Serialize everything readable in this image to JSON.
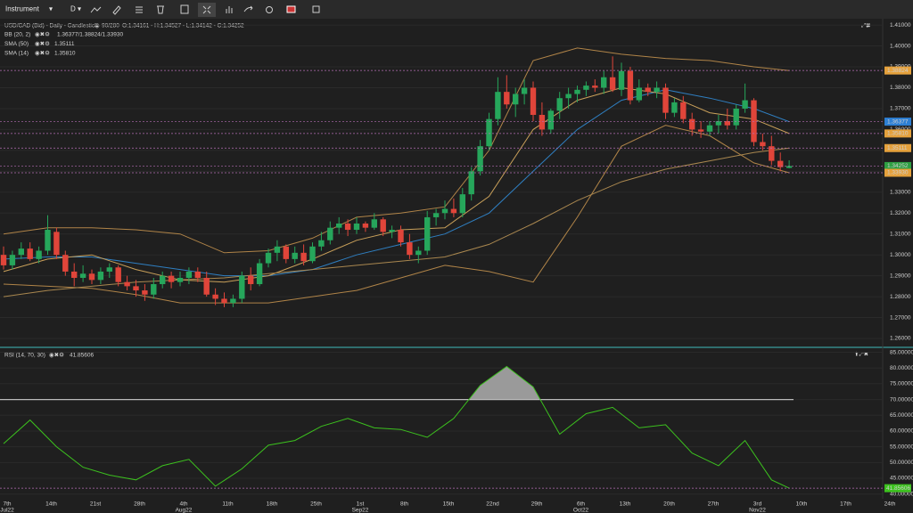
{
  "toolbar": {
    "instrument": "Instrument",
    "timeframe": "D"
  },
  "chart": {
    "title": "USD/CAD (Bid) - Daily - Candlestick",
    "bar_count": "90/280",
    "ohlc": "O:1.34161 - H:1.34527 - L:1.34142 - C:1.34252",
    "legend": [
      {
        "name": "BB (20, 2)",
        "value": "1.36377/1.38824/1.33930"
      },
      {
        "name": "SMA (50)",
        "value": "1.35111"
      },
      {
        "name": "SMA (14)",
        "value": "1.35810"
      }
    ],
    "up_color": "#26a65b",
    "down_color": "#e0453a",
    "ylim": [
      1.2566,
      1.4126
    ],
    "yticks": [
      {
        "value": 1.41,
        "label": "1.41000"
      },
      {
        "value": 1.4,
        "label": "1.40000"
      },
      {
        "value": 1.39,
        "label": "1.39000"
      },
      {
        "value": 1.38,
        "label": "1.38000"
      },
      {
        "value": 1.37,
        "label": "1.37000"
      },
      {
        "value": 1.36,
        "label": "1.36000"
      },
      {
        "value": 1.35,
        "label": "1.35000"
      },
      {
        "value": 1.34,
        "label": "1.34000"
      },
      {
        "value": 1.33,
        "label": "1.33000"
      },
      {
        "value": 1.32,
        "label": "1.32000"
      },
      {
        "value": 1.31,
        "label": "1.31000"
      },
      {
        "value": 1.3,
        "label": "1.30000"
      },
      {
        "value": 1.29,
        "label": "1.29000"
      },
      {
        "value": 1.28,
        "label": "1.28000"
      },
      {
        "value": 1.27,
        "label": "1.27000"
      },
      {
        "value": 1.26,
        "label": "1.26000"
      }
    ],
    "candles": [
      [
        1.3,
        1.304,
        1.293,
        1.295
      ],
      [
        1.295,
        1.302,
        1.293,
        1.3
      ],
      [
        1.3,
        1.306,
        1.298,
        1.303
      ],
      [
        1.303,
        1.306,
        1.297,
        1.298
      ],
      [
        1.298,
        1.304,
        1.296,
        1.302
      ],
      [
        1.302,
        1.319,
        1.3,
        1.312
      ],
      [
        1.311,
        1.313,
        1.298,
        1.3
      ],
      [
        1.3,
        1.302,
        1.29,
        1.292
      ],
      [
        1.292,
        1.296,
        1.285,
        1.289
      ],
      [
        1.289,
        1.295,
        1.287,
        1.291
      ],
      [
        1.291,
        1.293,
        1.286,
        1.288
      ],
      [
        1.288,
        1.294,
        1.286,
        1.292
      ],
      [
        1.292,
        1.296,
        1.289,
        1.294
      ],
      [
        1.294,
        1.295,
        1.285,
        1.287
      ],
      [
        1.287,
        1.29,
        1.283,
        1.285
      ],
      [
        1.285,
        1.288,
        1.28,
        1.283
      ],
      [
        1.283,
        1.286,
        1.278,
        1.281
      ],
      [
        1.281,
        1.289,
        1.279,
        1.286
      ],
      [
        1.286,
        1.292,
        1.284,
        1.29
      ],
      [
        1.29,
        1.292,
        1.284,
        1.287
      ],
      [
        1.287,
        1.292,
        1.285,
        1.289
      ],
      [
        1.289,
        1.294,
        1.286,
        1.292
      ],
      [
        1.292,
        1.294,
        1.287,
        1.289
      ],
      [
        1.289,
        1.292,
        1.28,
        1.281
      ],
      [
        1.281,
        1.284,
        1.276,
        1.279
      ],
      [
        1.279,
        1.282,
        1.275,
        1.277
      ],
      [
        1.277,
        1.281,
        1.275,
        1.279
      ],
      [
        1.279,
        1.292,
        1.277,
        1.29
      ],
      [
        1.29,
        1.294,
        1.283,
        1.286
      ],
      [
        1.286,
        1.298,
        1.285,
        1.296
      ],
      [
        1.296,
        1.303,
        1.294,
        1.301
      ],
      [
        1.301,
        1.307,
        1.297,
        1.304
      ],
      [
        1.304,
        1.305,
        1.296,
        1.298
      ],
      [
        1.298,
        1.304,
        1.296,
        1.301
      ],
      [
        1.301,
        1.305,
        1.295,
        1.297
      ],
      [
        1.297,
        1.306,
        1.296,
        1.304
      ],
      [
        1.304,
        1.311,
        1.302,
        1.307
      ],
      [
        1.307,
        1.316,
        1.305,
        1.313
      ],
      [
        1.313,
        1.318,
        1.31,
        1.315
      ],
      [
        1.315,
        1.317,
        1.309,
        1.312
      ],
      [
        1.312,
        1.318,
        1.31,
        1.315
      ],
      [
        1.315,
        1.316,
        1.311,
        1.313
      ],
      [
        1.313,
        1.32,
        1.312,
        1.317
      ],
      [
        1.317,
        1.318,
        1.309,
        1.311
      ],
      [
        1.311,
        1.314,
        1.308,
        1.312
      ],
      [
        1.312,
        1.314,
        1.304,
        1.306
      ],
      [
        1.306,
        1.31,
        1.298,
        1.3
      ],
      [
        1.3,
        1.304,
        1.296,
        1.302
      ],
      [
        1.302,
        1.321,
        1.3,
        1.318
      ],
      [
        1.318,
        1.322,
        1.314,
        1.32
      ],
      [
        1.32,
        1.326,
        1.317,
        1.322
      ],
      [
        1.322,
        1.327,
        1.318,
        1.32
      ],
      [
        1.32,
        1.332,
        1.318,
        1.329
      ],
      [
        1.329,
        1.342,
        1.326,
        1.34
      ],
      [
        1.34,
        1.355,
        1.338,
        1.352
      ],
      [
        1.352,
        1.368,
        1.35,
        1.365
      ],
      [
        1.365,
        1.385,
        1.362,
        1.378
      ],
      [
        1.378,
        1.386,
        1.37,
        1.372
      ],
      [
        1.372,
        1.38,
        1.366,
        1.377
      ],
      [
        1.377,
        1.384,
        1.372,
        1.38
      ],
      [
        1.38,
        1.383,
        1.364,
        1.367
      ],
      [
        1.367,
        1.373,
        1.357,
        1.36
      ],
      [
        1.36,
        1.37,
        1.358,
        1.369
      ],
      [
        1.369,
        1.378,
        1.365,
        1.375
      ],
      [
        1.375,
        1.38,
        1.37,
        1.377
      ],
      [
        1.377,
        1.381,
        1.373,
        1.379
      ],
      [
        1.379,
        1.383,
        1.376,
        1.381
      ],
      [
        1.381,
        1.384,
        1.378,
        1.38
      ],
      [
        1.38,
        1.388,
        1.377,
        1.385
      ],
      [
        1.385,
        1.395,
        1.378,
        1.379
      ],
      [
        1.379,
        1.392,
        1.376,
        1.388
      ],
      [
        1.388,
        1.39,
        1.372,
        1.374
      ],
      [
        1.374,
        1.384,
        1.373,
        1.38
      ],
      [
        1.38,
        1.382,
        1.376,
        1.378
      ],
      [
        1.378,
        1.383,
        1.375,
        1.38
      ],
      [
        1.38,
        1.382,
        1.365,
        1.368
      ],
      [
        1.368,
        1.375,
        1.366,
        1.373
      ],
      [
        1.373,
        1.376,
        1.363,
        1.365
      ],
      [
        1.365,
        1.368,
        1.357,
        1.36
      ],
      [
        1.36,
        1.364,
        1.356,
        1.359
      ],
      [
        1.359,
        1.364,
        1.357,
        1.362
      ],
      [
        1.362,
        1.367,
        1.358,
        1.364
      ],
      [
        1.364,
        1.37,
        1.36,
        1.362
      ],
      [
        1.362,
        1.372,
        1.36,
        1.37
      ],
      [
        1.37,
        1.382,
        1.368,
        1.374
      ],
      [
        1.374,
        1.375,
        1.352,
        1.354
      ],
      [
        1.354,
        1.358,
        1.35,
        1.352
      ],
      [
        1.352,
        1.357,
        1.343,
        1.345
      ],
      [
        1.345,
        1.349,
        1.34,
        1.342
      ],
      [
        1.34161,
        1.34527,
        1.34142,
        1.34252
      ]
    ],
    "lines": [
      {
        "color": "#b08448",
        "x": [
          0,
          5,
          10,
          15,
          20,
          25,
          30,
          35,
          40,
          45,
          50,
          55,
          60,
          65,
          70,
          75,
          80,
          85,
          89
        ],
        "values": [
          1.31,
          1.313,
          1.313,
          1.312,
          1.31,
          1.301,
          1.302,
          1.308,
          1.318,
          1.32,
          1.323,
          1.35,
          1.393,
          1.399,
          1.396,
          1.394,
          1.393,
          1.39,
          1.38824
        ]
      },
      {
        "color": "#2f7fc1",
        "x": [
          0,
          5,
          10,
          15,
          20,
          25,
          30,
          35,
          40,
          45,
          50,
          55,
          60,
          65,
          70,
          75,
          80,
          85,
          89
        ],
        "values": [
          1.298,
          1.299,
          1.299,
          1.296,
          1.293,
          1.29,
          1.29,
          1.293,
          1.3,
          1.305,
          1.31,
          1.32,
          1.34,
          1.36,
          1.374,
          1.379,
          1.375,
          1.37,
          1.36377
        ]
      },
      {
        "color": "#b08448",
        "x": [
          0,
          5,
          10,
          15,
          20,
          25,
          30,
          35,
          40,
          45,
          50,
          55,
          60,
          65,
          70,
          75,
          80,
          85,
          89
        ],
        "values": [
          1.286,
          1.285,
          1.284,
          1.281,
          1.277,
          1.277,
          1.277,
          1.28,
          1.283,
          1.289,
          1.295,
          1.292,
          1.287,
          1.318,
          1.352,
          1.362,
          1.357,
          1.344,
          1.3393
        ]
      },
      {
        "color": "#c9a05a",
        "x": [
          0,
          5,
          10,
          15,
          20,
          25,
          30,
          35,
          40,
          45,
          50,
          55,
          60,
          65,
          70,
          75,
          80,
          85,
          89
        ],
        "values": [
          1.292,
          1.298,
          1.3,
          1.293,
          1.288,
          1.287,
          1.29,
          1.298,
          1.307,
          1.312,
          1.313,
          1.328,
          1.36,
          1.374,
          1.38,
          1.377,
          1.368,
          1.365,
          1.3581
        ]
      },
      {
        "color": "#a9874f",
        "x": [
          0,
          5,
          10,
          15,
          20,
          25,
          30,
          35,
          40,
          45,
          50,
          55,
          60,
          65,
          70,
          75,
          80,
          85,
          89
        ],
        "values": [
          1.28,
          1.283,
          1.285,
          1.287,
          1.288,
          1.289,
          1.291,
          1.293,
          1.295,
          1.297,
          1.299,
          1.305,
          1.315,
          1.326,
          1.335,
          1.341,
          1.345,
          1.349,
          1.35111
        ]
      }
    ],
    "price_tags": [
      {
        "value": 1.38824,
        "label": "1.38824",
        "color": "#e5a13c"
      },
      {
        "value": 1.36377,
        "label": "1.36377",
        "color": "#2d7fd3"
      },
      {
        "value": 1.3581,
        "label": "1.35810",
        "color": "#e5a13c"
      },
      {
        "value": 1.35111,
        "label": "1.35111",
        "color": "#e5a13c"
      },
      {
        "value": 1.34252,
        "label": "1.34252",
        "color": "#2ea043"
      },
      {
        "value": 1.3393,
        "label": "1.33930",
        "color": "#e5a13c"
      }
    ]
  },
  "rsi": {
    "title": "RSI (14, 70, 30)",
    "current": "41.85606",
    "color": "#3cc21e",
    "ylim": [
      38.5,
      86
    ],
    "yticks": [
      {
        "value": 85,
        "label": "85.00000"
      },
      {
        "value": 80,
        "label": "80.00000"
      },
      {
        "value": 75,
        "label": "75.00000"
      },
      {
        "value": 70,
        "label": "70.00000"
      },
      {
        "value": 65,
        "label": "65.00000"
      },
      {
        "value": 60,
        "label": "60.00000"
      },
      {
        "value": 55,
        "label": "55.00000"
      },
      {
        "value": 50,
        "label": "50.00000"
      },
      {
        "value": 45,
        "label": "45.00000"
      },
      {
        "value": 40,
        "label": "40.00000"
      }
    ],
    "overbought": 70,
    "x": [
      0,
      3,
      6,
      9,
      12,
      15,
      18,
      21,
      24,
      27,
      30,
      33,
      36,
      39,
      42,
      45,
      48,
      51,
      54,
      57,
      60,
      63,
      66,
      69,
      72,
      75,
      78,
      81,
      84,
      87,
      89
    ],
    "values": [
      56,
      63.5,
      55,
      48.5,
      46,
      44.5,
      49,
      51,
      42.5,
      48,
      55.5,
      57,
      61.5,
      64,
      61,
      60.5,
      58,
      64,
      74.5,
      80.5,
      74,
      59,
      65.5,
      67.5,
      61,
      62,
      53,
      49,
      57,
      44.5,
      41.85606
    ],
    "tag": {
      "value": 41.85606,
      "label": "41.85606",
      "color": "#3cc21e"
    }
  },
  "dates": [
    "7th",
    "14th",
    "21st",
    "28th",
    "4th",
    "11th",
    "18th",
    "25th",
    "1st",
    "8th",
    "15th",
    "22nd",
    "29th",
    "6th",
    "13th",
    "20th",
    "27th",
    "3rd",
    "10th",
    "17th",
    "24th"
  ],
  "months": [
    "Jul22",
    "Aug22",
    "Sep22",
    "Oct22",
    "Nov22"
  ]
}
